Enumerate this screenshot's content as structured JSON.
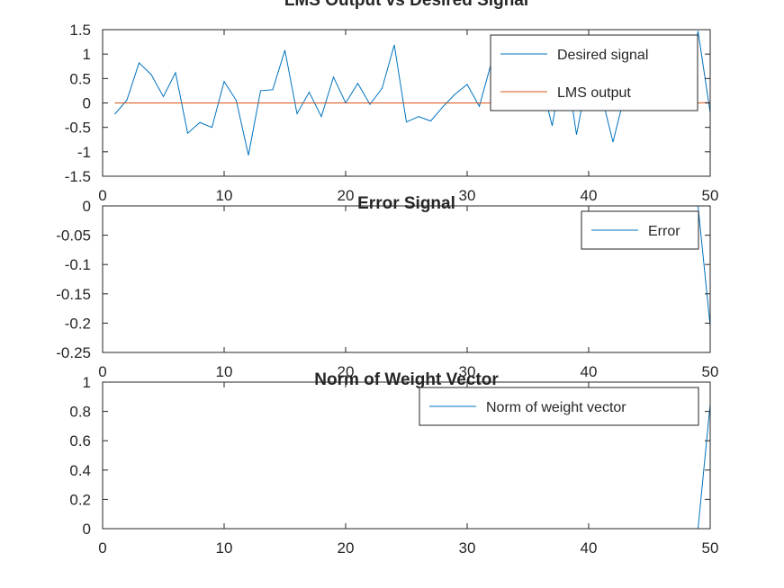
{
  "chart_data": [
    {
      "type": "line",
      "title": "LMS Output vs Desired Signal",
      "xlabel": "",
      "ylabel": "",
      "xlim": [
        0,
        50
      ],
      "ylim": [
        -1.5,
        1.5
      ],
      "xticks": [
        0,
        10,
        20,
        30,
        40,
        50
      ],
      "yticks": [
        -1.5,
        -1,
        -0.5,
        0,
        0.5,
        1,
        1.5
      ],
      "xtick_labels": [
        "0",
        "10",
        "20",
        "30",
        "40",
        "50"
      ],
      "ytick_labels": [
        "-1.5",
        "-1",
        "-0.5",
        "0",
        "0.5",
        "1",
        "1.5"
      ],
      "grid": false,
      "legend_position": "top-right",
      "series": [
        {
          "name": "Desired signal",
          "color": "#0072BD",
          "x": [
            1,
            2,
            3,
            4,
            5,
            6,
            7,
            8,
            9,
            10,
            11,
            12,
            13,
            14,
            15,
            16,
            17,
            18,
            19,
            20,
            21,
            22,
            23,
            24,
            25,
            26,
            27,
            28,
            29,
            30,
            31,
            32,
            33,
            34,
            35,
            36,
            37,
            38,
            39,
            40,
            41,
            42,
            43,
            44,
            45,
            46,
            47,
            48,
            49,
            50
          ],
          "y": [
            -0.23,
            0.06,
            0.82,
            0.58,
            0.13,
            0.62,
            -0.62,
            -0.4,
            -0.5,
            0.44,
            0.05,
            -1.07,
            0.25,
            0.27,
            1.08,
            -0.22,
            0.22,
            -0.28,
            0.53,
            0.0,
            0.4,
            -0.03,
            0.3,
            1.19,
            -0.39,
            -0.28,
            -0.37,
            -0.08,
            0.18,
            0.38,
            -0.07,
            0.83,
            0.04,
            0.87,
            0.25,
            0.52,
            -0.47,
            1.0,
            -0.65,
            0.65,
            0.21,
            -0.8,
            0.2,
            0.35,
            0.43,
            0.78,
            1.08,
            0.08,
            1.47,
            -0.2
          ]
        },
        {
          "name": "LMS output",
          "color": "#D95319",
          "x": [
            1,
            2,
            3,
            4,
            5,
            6,
            7,
            8,
            9,
            10,
            11,
            12,
            13,
            14,
            15,
            16,
            17,
            18,
            19,
            20,
            21,
            22,
            23,
            24,
            25,
            26,
            27,
            28,
            29,
            30,
            31,
            32,
            33,
            34,
            35,
            36,
            37,
            38,
            39,
            40,
            41,
            42,
            43,
            44,
            45,
            46,
            47,
            48,
            49,
            50
          ],
          "y": [
            0,
            0,
            0,
            0,
            0,
            0,
            0,
            0,
            0,
            0,
            0,
            0,
            0,
            0,
            0,
            0,
            0,
            0,
            0,
            0,
            0,
            0,
            0,
            0,
            0,
            0,
            0,
            0,
            0,
            0,
            0,
            0,
            0,
            0,
            0,
            0,
            0,
            0,
            0,
            0,
            0,
            0,
            0,
            0,
            0,
            0,
            0,
            0,
            0,
            0.01
          ]
        }
      ]
    },
    {
      "type": "line",
      "title": "Error Signal",
      "xlabel": "",
      "ylabel": "",
      "xlim": [
        0,
        50
      ],
      "ylim": [
        -0.25,
        0
      ],
      "xticks": [
        0,
        10,
        20,
        30,
        40,
        50
      ],
      "yticks": [
        -0.25,
        -0.2,
        -0.15,
        -0.1,
        -0.05,
        0
      ],
      "xtick_labels": [
        "0",
        "10",
        "20",
        "30",
        "40",
        "50"
      ],
      "ytick_labels": [
        "-0.25",
        "-0.2",
        "-0.15",
        "-0.1",
        "-0.05",
        "0"
      ],
      "grid": false,
      "legend_position": "top-right",
      "series": [
        {
          "name": "Error",
          "color": "#0072BD",
          "x": [
            1,
            2,
            3,
            4,
            5,
            6,
            7,
            8,
            9,
            10,
            11,
            12,
            13,
            14,
            15,
            16,
            17,
            18,
            19,
            20,
            21,
            22,
            23,
            24,
            25,
            26,
            27,
            28,
            29,
            30,
            31,
            32,
            33,
            34,
            35,
            36,
            37,
            38,
            39,
            40,
            41,
            42,
            43,
            44,
            45,
            46,
            47,
            48,
            49,
            50
          ],
          "y": [
            0,
            0,
            0,
            0,
            0,
            0,
            0,
            0,
            0,
            0,
            0,
            0,
            0,
            0,
            0,
            0,
            0,
            0,
            0,
            0,
            0,
            0,
            0,
            0,
            0,
            0,
            0,
            0,
            0,
            0,
            0,
            0,
            0,
            0,
            0,
            0,
            0,
            0,
            0,
            0,
            0,
            0,
            0,
            0,
            0,
            0,
            0,
            0,
            0,
            -0.205
          ]
        }
      ]
    },
    {
      "type": "line",
      "title": "Norm of Weight Vector",
      "xlabel": "",
      "ylabel": "",
      "xlim": [
        0,
        50
      ],
      "ylim": [
        0,
        1
      ],
      "xticks": [
        0,
        10,
        20,
        30,
        40,
        50
      ],
      "yticks": [
        0,
        0.2,
        0.4,
        0.6,
        0.8,
        1
      ],
      "xtick_labels": [
        "0",
        "10",
        "20",
        "30",
        "40",
        "50"
      ],
      "ytick_labels": [
        "0",
        "0.2",
        "0.4",
        "0.6",
        "0.8",
        "1"
      ],
      "grid": false,
      "legend_position": "top-right",
      "series": [
        {
          "name": "Norm of weight vector",
          "color": "#0072BD",
          "x": [
            1,
            2,
            3,
            4,
            5,
            6,
            7,
            8,
            9,
            10,
            11,
            12,
            13,
            14,
            15,
            16,
            17,
            18,
            19,
            20,
            21,
            22,
            23,
            24,
            25,
            26,
            27,
            28,
            29,
            30,
            31,
            32,
            33,
            34,
            35,
            36,
            37,
            38,
            39,
            40,
            41,
            42,
            43,
            44,
            45,
            46,
            47,
            48,
            49,
            50
          ],
          "y": [
            0,
            0,
            0,
            0,
            0,
            0,
            0,
            0,
            0,
            0,
            0,
            0,
            0,
            0,
            0,
            0,
            0,
            0,
            0,
            0,
            0,
            0,
            0,
            0,
            0,
            0,
            0,
            0,
            0,
            0,
            0,
            0,
            0,
            0,
            0,
            0,
            0,
            0,
            0,
            0,
            0,
            0,
            0,
            0,
            0,
            0,
            0,
            0,
            0,
            0.85
          ]
        }
      ]
    }
  ]
}
